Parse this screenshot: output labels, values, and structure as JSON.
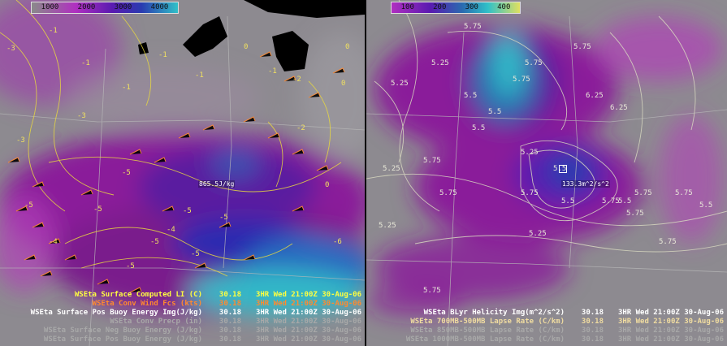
{
  "left_panel": {
    "colorbar": [
      "1000",
      "2000",
      "3000",
      "4000"
    ],
    "readout": "865.5J/kg",
    "legend": [
      {
        "product": "WSEta Surface Computed LI (C)",
        "value": "30.18",
        "time": "3HR Wed 21:00Z 30-Aug-06",
        "color": "#ffff40"
      },
      {
        "product": "WSEta Conv Wind Fcs (kts)",
        "value": "30.18",
        "time": "3HR Wed 21:00Z 30-Aug-06",
        "color": "#ff8a30"
      },
      {
        "product": "WSEta Surface Pos Buoy Energy Img(J/kg)",
        "value": "30.18",
        "time": "3HR Wed 21:00Z 30-Aug-06",
        "color": "#ffffff"
      },
      {
        "product": "WSEta Conv Precp (in)",
        "value": "30.18",
        "time": "3HR Wed 21:00Z 30-Aug-06",
        "color": "#a8a8a8"
      },
      {
        "product": "WSEta Surface Neg Buoy Energy (J/kg)",
        "value": "30.18",
        "time": "3HR Wed 21:00Z 30-Aug-06",
        "color": "#a8a8a8"
      },
      {
        "product": "WSEta Surface Pos Buoy Energy (J/kg)",
        "value": "30.18",
        "time": "3HR Wed 21:00Z 30-Aug-06",
        "color": "#a8a8a8"
      }
    ],
    "contour_labels": [
      "-3",
      "-1",
      "-1",
      "-1",
      "-1",
      "-1",
      "-3",
      "-2",
      "0",
      "-2",
      "-5",
      "-5",
      "-5",
      "-5",
      "-5",
      "-5",
      "-5",
      "-4",
      "-6",
      "-5",
      "-4",
      "-3",
      "-1",
      "0",
      "0",
      "0"
    ]
  },
  "right_panel": {
    "colorbar": [
      "100",
      "200",
      "300",
      "400"
    ],
    "readout": "133.3m^2/s^2",
    "legend": [
      {
        "product": "WSEta BLyr Helicity Img(m^2/s^2)",
        "value": "30.18",
        "time": "3HR Wed 21:00Z 30-Aug-06",
        "color": "#ffffff"
      },
      {
        "product": "WSEta 700MB-500MB Lapse Rate (C/km)",
        "value": "30.18",
        "time": "3HR Wed 21:00Z 30-Aug-06",
        "color": "#f0dca0"
      },
      {
        "product": "WSEta 850MB-500MB Lapse Rate (C/km)",
        "value": "30.18",
        "time": "3HR Wed 21:00Z 30-Aug-06",
        "color": "#a8a8a8"
      },
      {
        "product": "WSEta 1000MB-500MB Lapse Rate (C/km)",
        "value": "30.18",
        "time": "3HR Wed 21:00Z 30-Aug-06",
        "color": "#a8a8a8"
      }
    ],
    "contour_labels": [
      "5.75",
      "5.25",
      "5.25",
      "5.75",
      "5.5",
      "5.75",
      "5.5",
      "5.5",
      "5.25",
      "5.75",
      "5.25",
      "5.5",
      "5.75",
      "5.5",
      "5.75",
      "5.75",
      "5.5",
      "5.75",
      "6.25",
      "5.25",
      "5.75",
      "5.75",
      "5.5",
      "5.75",
      "6.25",
      "5.75",
      "5.25",
      "5.75"
    ]
  },
  "colors": {
    "purple": "#8a1a9a",
    "magenta": "#b030c0",
    "blue": "#2a3ab0",
    "cyan": "#30c0c8",
    "gray": "#8a8a8a"
  }
}
